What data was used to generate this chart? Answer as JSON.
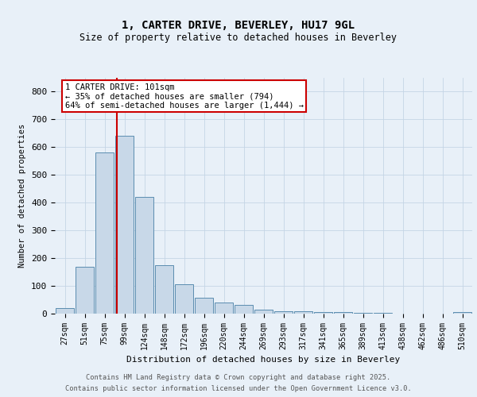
{
  "title1": "1, CARTER DRIVE, BEVERLEY, HU17 9GL",
  "title2": "Size of property relative to detached houses in Beverley",
  "xlabel": "Distribution of detached houses by size in Beverley",
  "ylabel": "Number of detached properties",
  "bin_labels": [
    "27sqm",
    "51sqm",
    "75sqm",
    "99sqm",
    "124sqm",
    "148sqm",
    "172sqm",
    "196sqm",
    "220sqm",
    "244sqm",
    "269sqm",
    "293sqm",
    "317sqm",
    "341sqm",
    "365sqm",
    "389sqm",
    "413sqm",
    "438sqm",
    "462sqm",
    "486sqm",
    "510sqm"
  ],
  "bar_heights": [
    20,
    170,
    580,
    640,
    420,
    175,
    105,
    57,
    40,
    32,
    15,
    10,
    8,
    6,
    5,
    3,
    2,
    1,
    1,
    1,
    5
  ],
  "bar_color": "#c8d8e8",
  "bar_edge_color": "#5b8db0",
  "grid_color": "#c5d5e5",
  "background_color": "#e8f0f8",
  "red_line_color": "#cc0000",
  "annotation_text": "1 CARTER DRIVE: 101sqm\n← 35% of detached houses are smaller (794)\n64% of semi-detached houses are larger (1,444) →",
  "annotation_box_color": "#ffffff",
  "annotation_box_edge": "#cc0000",
  "footer1": "Contains HM Land Registry data © Crown copyright and database right 2025.",
  "footer2": "Contains public sector information licensed under the Open Government Licence v3.0.",
  "ylim": [
    0,
    850
  ],
  "yticks": [
    0,
    100,
    200,
    300,
    400,
    500,
    600,
    700,
    800
  ]
}
